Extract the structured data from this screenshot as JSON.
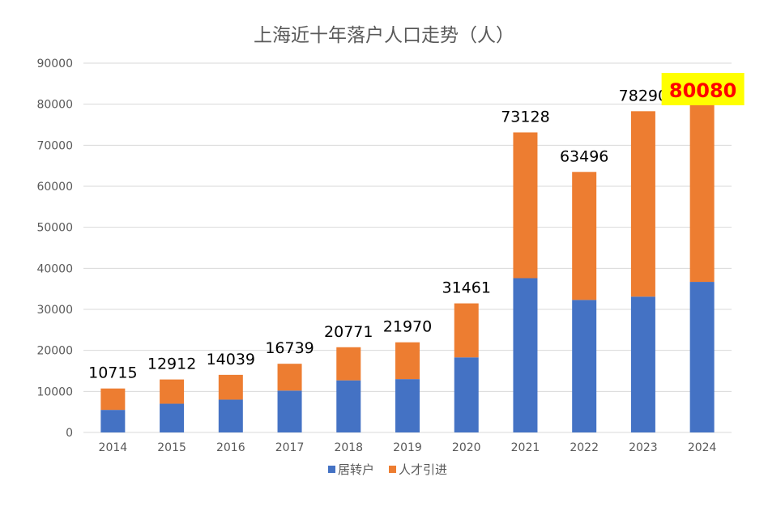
{
  "chart_data": {
    "type": "bar",
    "stacked": true,
    "title": "上海近十年落户人口走势（人）",
    "categories": [
      "2014",
      "2015",
      "2016",
      "2017",
      "2018",
      "2019",
      "2020",
      "2021",
      "2022",
      "2023",
      "2024"
    ],
    "series": [
      {
        "name": "居转户",
        "color": "#4472c4",
        "values": [
          5500,
          7000,
          8000,
          10200,
          12700,
          13000,
          18300,
          37600,
          32300,
          33100,
          36700
        ]
      },
      {
        "name": "人才引进",
        "color": "#ed7d31",
        "values": [
          5215,
          5912,
          6039,
          6539,
          8071,
          8970,
          13161,
          35528,
          31196,
          45190,
          43380
        ]
      }
    ],
    "totals": [
      "10715",
      "12912",
      "14039",
      "16739",
      "20771",
      "21970",
      "31461",
      "73128",
      "63496",
      "78290",
      "80080"
    ],
    "highlight": {
      "category": "2024",
      "label_color": "#ff0000",
      "background": "#ffff00"
    },
    "ylim": [
      0,
      90000
    ],
    "yticks": [
      "0",
      "10000",
      "20000",
      "30000",
      "40000",
      "50000",
      "60000",
      "70000",
      "80000",
      "90000"
    ],
    "grid": true,
    "legend_position": "bottom"
  }
}
